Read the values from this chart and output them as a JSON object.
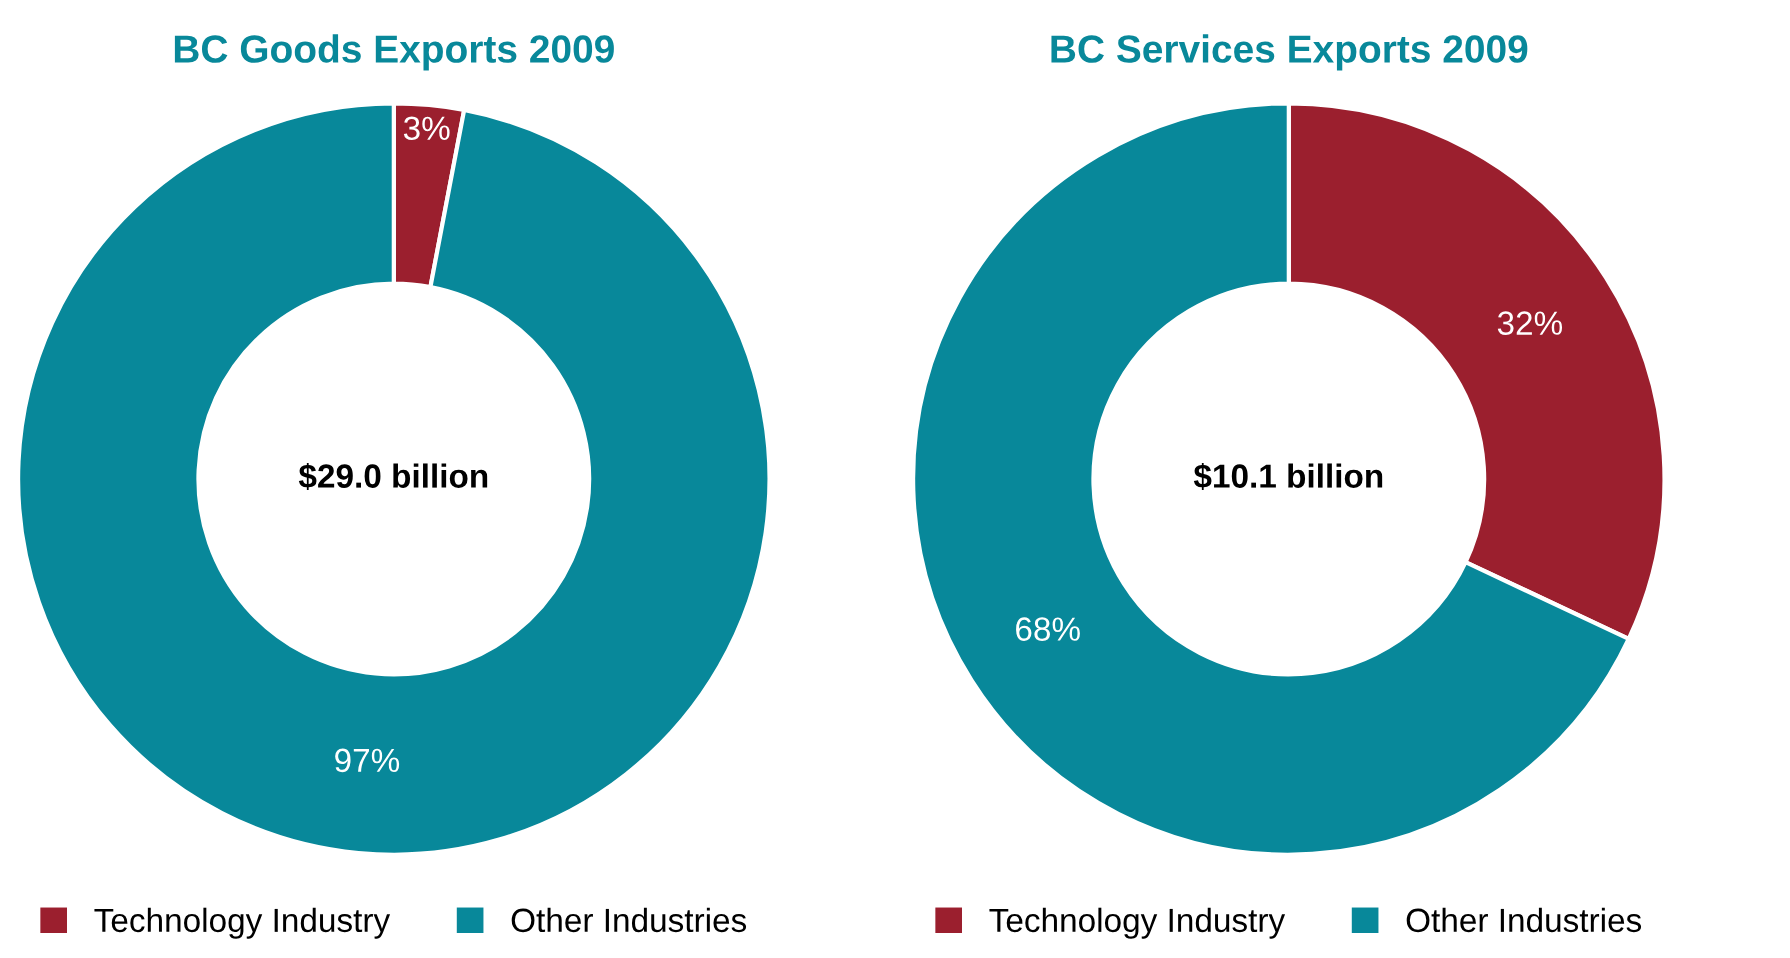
{
  "chart_data": [
    {
      "type": "donut",
      "title": "BC Goods Exports 2009",
      "categories": [
        "Technology Industry",
        "Other Industries"
      ],
      "values": [
        3,
        97
      ],
      "colors": [
        "#9b1f2e",
        "#08889a"
      ],
      "value_labels": [
        "3%",
        "97%"
      ],
      "annotations": [
        "$29.0 billion"
      ],
      "legend": "bottom"
    },
    {
      "type": "donut",
      "title": "BC Services Exports 2009",
      "categories": [
        "Technology Industry",
        "Other Industries"
      ],
      "values": [
        32,
        68
      ],
      "colors": [
        "#9b1f2e",
        "#08889a"
      ],
      "value_labels": [
        "32%",
        "68%"
      ],
      "annotations": [
        "$10.1 billion"
      ],
      "legend": "bottom"
    }
  ]
}
